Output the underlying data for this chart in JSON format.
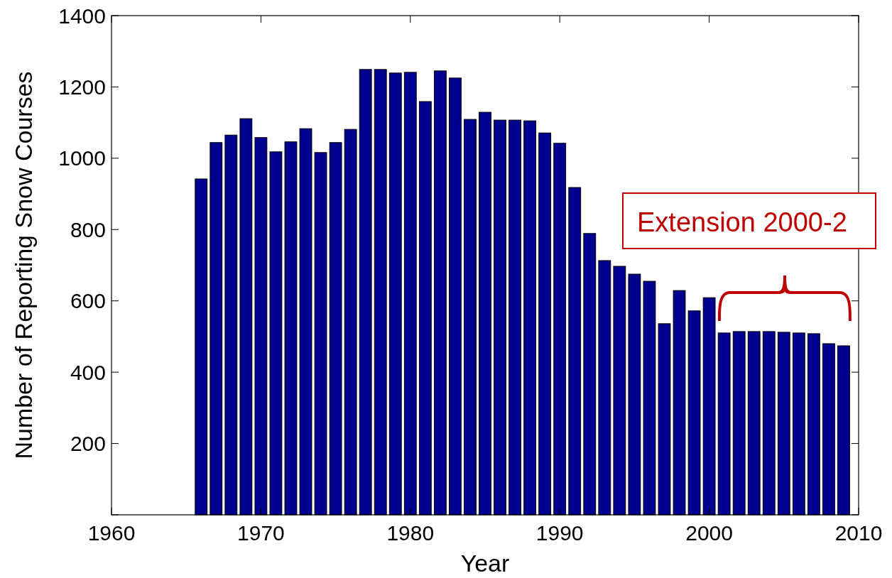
{
  "chart_data": {
    "type": "bar",
    "xlabel": "Year",
    "ylabel": "Number of Reporting Snow Courses",
    "x": [
      1966,
      1967,
      1968,
      1969,
      1970,
      1971,
      1972,
      1973,
      1974,
      1975,
      1976,
      1977,
      1978,
      1979,
      1980,
      1981,
      1982,
      1983,
      1984,
      1985,
      1986,
      1987,
      1988,
      1989,
      1990,
      1991,
      1992,
      1993,
      1994,
      1995,
      1996,
      1997,
      1998,
      1999,
      2000,
      2001,
      2002,
      2003,
      2004,
      2005,
      2006,
      2007,
      2008,
      2009
    ],
    "series": [
      {
        "color": "#00008f",
        "values": [
          942,
          1044,
          1065,
          1111,
          1058,
          1018,
          1046,
          1083,
          1016,
          1044,
          1081,
          1249,
          1249,
          1239,
          1241,
          1159,
          1245,
          1225,
          1109,
          1129,
          1107,
          1107,
          1105,
          1071,
          1042,
          918,
          789,
          713,
          697,
          675,
          655,
          536,
          629,
          572,
          609,
          510,
          514,
          514,
          514,
          512,
          510,
          508,
          480,
          474
        ]
      }
    ],
    "xlim": [
      1960,
      2010
    ],
    "xticks": [
      1960,
      1970,
      1980,
      1990,
      2000,
      2010
    ],
    "ylim": [
      0,
      1400
    ],
    "yticks": [
      {
        "value": 0,
        "label": null
      },
      200,
      400,
      600,
      800,
      1000,
      1200,
      1400
    ],
    "annotations": [
      "Extension 2000-2"
    ]
  }
}
